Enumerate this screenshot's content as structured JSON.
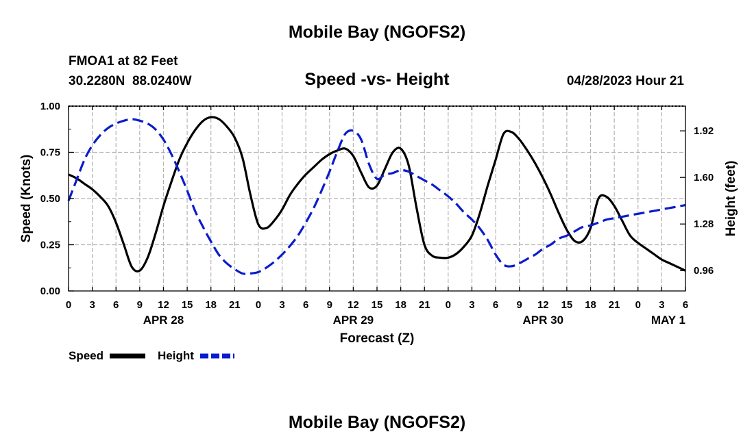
{
  "page_title": "Mobile Bay (NGOFS2)",
  "station": "FMOA1 at 82 Feet",
  "coords": "30.2280N  88.0240W",
  "chart_title": "Speed -vs- Height",
  "datetime": "04/28/2023 Hour 21",
  "bottom_title": "Mobile Bay (NGOFS2)",
  "colors": {
    "speed": "#000000",
    "height": "#0a1ccc",
    "grid": "#b4b4b4"
  },
  "chart_data": {
    "type": "line",
    "xlabel": "Forecast (Z)",
    "ylabel_left": "Speed (Knots)",
    "ylabel_right": "Height (feet)",
    "x_range_hours": [
      0,
      78
    ],
    "x_tick_labels": [
      "0",
      "3",
      "6",
      "9",
      "12",
      "15",
      "18",
      "21",
      "0",
      "3",
      "6",
      "9",
      "12",
      "15",
      "18",
      "21",
      "0",
      "3",
      "6",
      "9",
      "12",
      "15",
      "18",
      "21",
      "0",
      "3",
      "6"
    ],
    "date_labels": [
      {
        "label": "APR 28",
        "hour": 12
      },
      {
        "label": "APR 29",
        "hour": 36
      },
      {
        "label": "APR 30",
        "hour": 60
      },
      {
        "label": "MAY 1",
        "hour": 78
      }
    ],
    "y_left": {
      "range": [
        0,
        1.0
      ],
      "ticks": [
        "0.00",
        "0.25",
        "0.50",
        "0.75",
        "1.00"
      ]
    },
    "y_right": {
      "range": [
        0.82,
        2.09
      ],
      "ticks": [
        "0.96",
        "1.28",
        "1.60",
        "1.92"
      ]
    },
    "grid": true,
    "legend": {
      "placement": "bottom-left",
      "items": [
        "Speed",
        "Height"
      ]
    },
    "series": [
      {
        "name": "Speed",
        "axis": "left",
        "style": "solid",
        "x": [
          0,
          1,
          2,
          3,
          4,
          5,
          6,
          7,
          8,
          9,
          10,
          11,
          12,
          13,
          14,
          15,
          16,
          17,
          18,
          19,
          20,
          21,
          22,
          23,
          24,
          25,
          26,
          27,
          28,
          29,
          30,
          31,
          32,
          33,
          34,
          35,
          36,
          37,
          38,
          39,
          40,
          41,
          42,
          43,
          44,
          45,
          46,
          47,
          48,
          49,
          50,
          51,
          52,
          53,
          54,
          55,
          56,
          57,
          58,
          59,
          60,
          61,
          62,
          63,
          64,
          65,
          66,
          67,
          68,
          69,
          70,
          71,
          72,
          73,
          74,
          75,
          76,
          77,
          78
        ],
        "values": [
          0.63,
          0.61,
          0.58,
          0.55,
          0.51,
          0.46,
          0.37,
          0.25,
          0.13,
          0.11,
          0.18,
          0.31,
          0.46,
          0.59,
          0.71,
          0.8,
          0.87,
          0.92,
          0.94,
          0.93,
          0.89,
          0.83,
          0.72,
          0.52,
          0.36,
          0.34,
          0.38,
          0.44,
          0.52,
          0.58,
          0.63,
          0.67,
          0.71,
          0.74,
          0.76,
          0.77,
          0.73,
          0.64,
          0.56,
          0.57,
          0.66,
          0.75,
          0.77,
          0.68,
          0.45,
          0.25,
          0.19,
          0.18,
          0.18,
          0.2,
          0.24,
          0.3,
          0.42,
          0.57,
          0.71,
          0.85,
          0.86,
          0.82,
          0.76,
          0.69,
          0.61,
          0.52,
          0.42,
          0.33,
          0.27,
          0.27,
          0.34,
          0.5,
          0.51,
          0.46,
          0.38,
          0.3,
          0.26,
          0.23,
          0.2,
          0.17,
          0.15,
          0.13,
          0.11
        ]
      },
      {
        "name": "Height",
        "axis": "right",
        "style": "dashed",
        "x": [
          0,
          1,
          2,
          3,
          4,
          5,
          6,
          7,
          8,
          9,
          10,
          11,
          12,
          13,
          14,
          15,
          16,
          17,
          18,
          19,
          20,
          21,
          22,
          23,
          24,
          25,
          26,
          27,
          28,
          29,
          30,
          31,
          32,
          33,
          34,
          35,
          36,
          37,
          38,
          39,
          40,
          41,
          42,
          43,
          44,
          45,
          46,
          47,
          48,
          49,
          50,
          51,
          52,
          53,
          54,
          55,
          56,
          57,
          58,
          59,
          60,
          61,
          62,
          63,
          64,
          65,
          66,
          67,
          68,
          69,
          70,
          71,
          72,
          73,
          74,
          75,
          76,
          77,
          78
        ],
        "values": [
          1.44,
          1.58,
          1.72,
          1.82,
          1.89,
          1.94,
          1.97,
          1.99,
          2.0,
          1.99,
          1.97,
          1.93,
          1.86,
          1.76,
          1.64,
          1.51,
          1.37,
          1.26,
          1.16,
          1.07,
          1.01,
          0.97,
          0.94,
          0.94,
          0.95,
          0.98,
          1.02,
          1.07,
          1.13,
          1.2,
          1.29,
          1.39,
          1.51,
          1.64,
          1.78,
          1.9,
          1.92,
          1.86,
          1.69,
          1.59,
          1.62,
          1.63,
          1.65,
          1.64,
          1.61,
          1.58,
          1.55,
          1.51,
          1.47,
          1.42,
          1.36,
          1.31,
          1.25,
          1.17,
          1.07,
          1.0,
          0.99,
          1.01,
          1.04,
          1.07,
          1.11,
          1.14,
          1.18,
          1.2,
          1.23,
          1.26,
          1.27,
          1.29,
          1.31,
          1.32,
          1.33,
          1.34,
          1.35,
          1.36,
          1.37,
          1.38,
          1.39,
          1.4,
          1.41
        ]
      }
    ]
  }
}
